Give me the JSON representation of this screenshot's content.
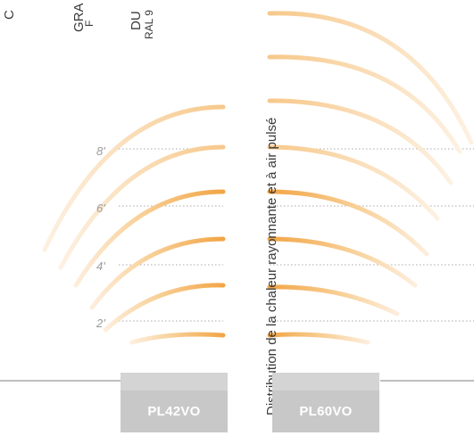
{
  "colors": {
    "heat_strong": "#f2a545",
    "heat_light": "#fbe2bd",
    "dotted_line": "#a8a8a8",
    "unit_box": "#c8c8c8",
    "floor_line": "#a8a8a8"
  },
  "header_fragments": [
    {
      "id": "c",
      "text": "C"
    },
    {
      "id": "gra",
      "text": "GRA"
    },
    {
      "id": "gra_sub",
      "text": "F"
    },
    {
      "id": "du",
      "text": "DU"
    },
    {
      "id": "ral",
      "text": "RAL 9"
    }
  ],
  "diagram": {
    "title": "Distribution de la chaleur rayonnante et à air pulsé",
    "height_labels": [
      "8'",
      "6'",
      "4'",
      "2'"
    ],
    "units": [
      {
        "label": "PL42VO"
      },
      {
        "label": "PL60VO"
      }
    ]
  }
}
